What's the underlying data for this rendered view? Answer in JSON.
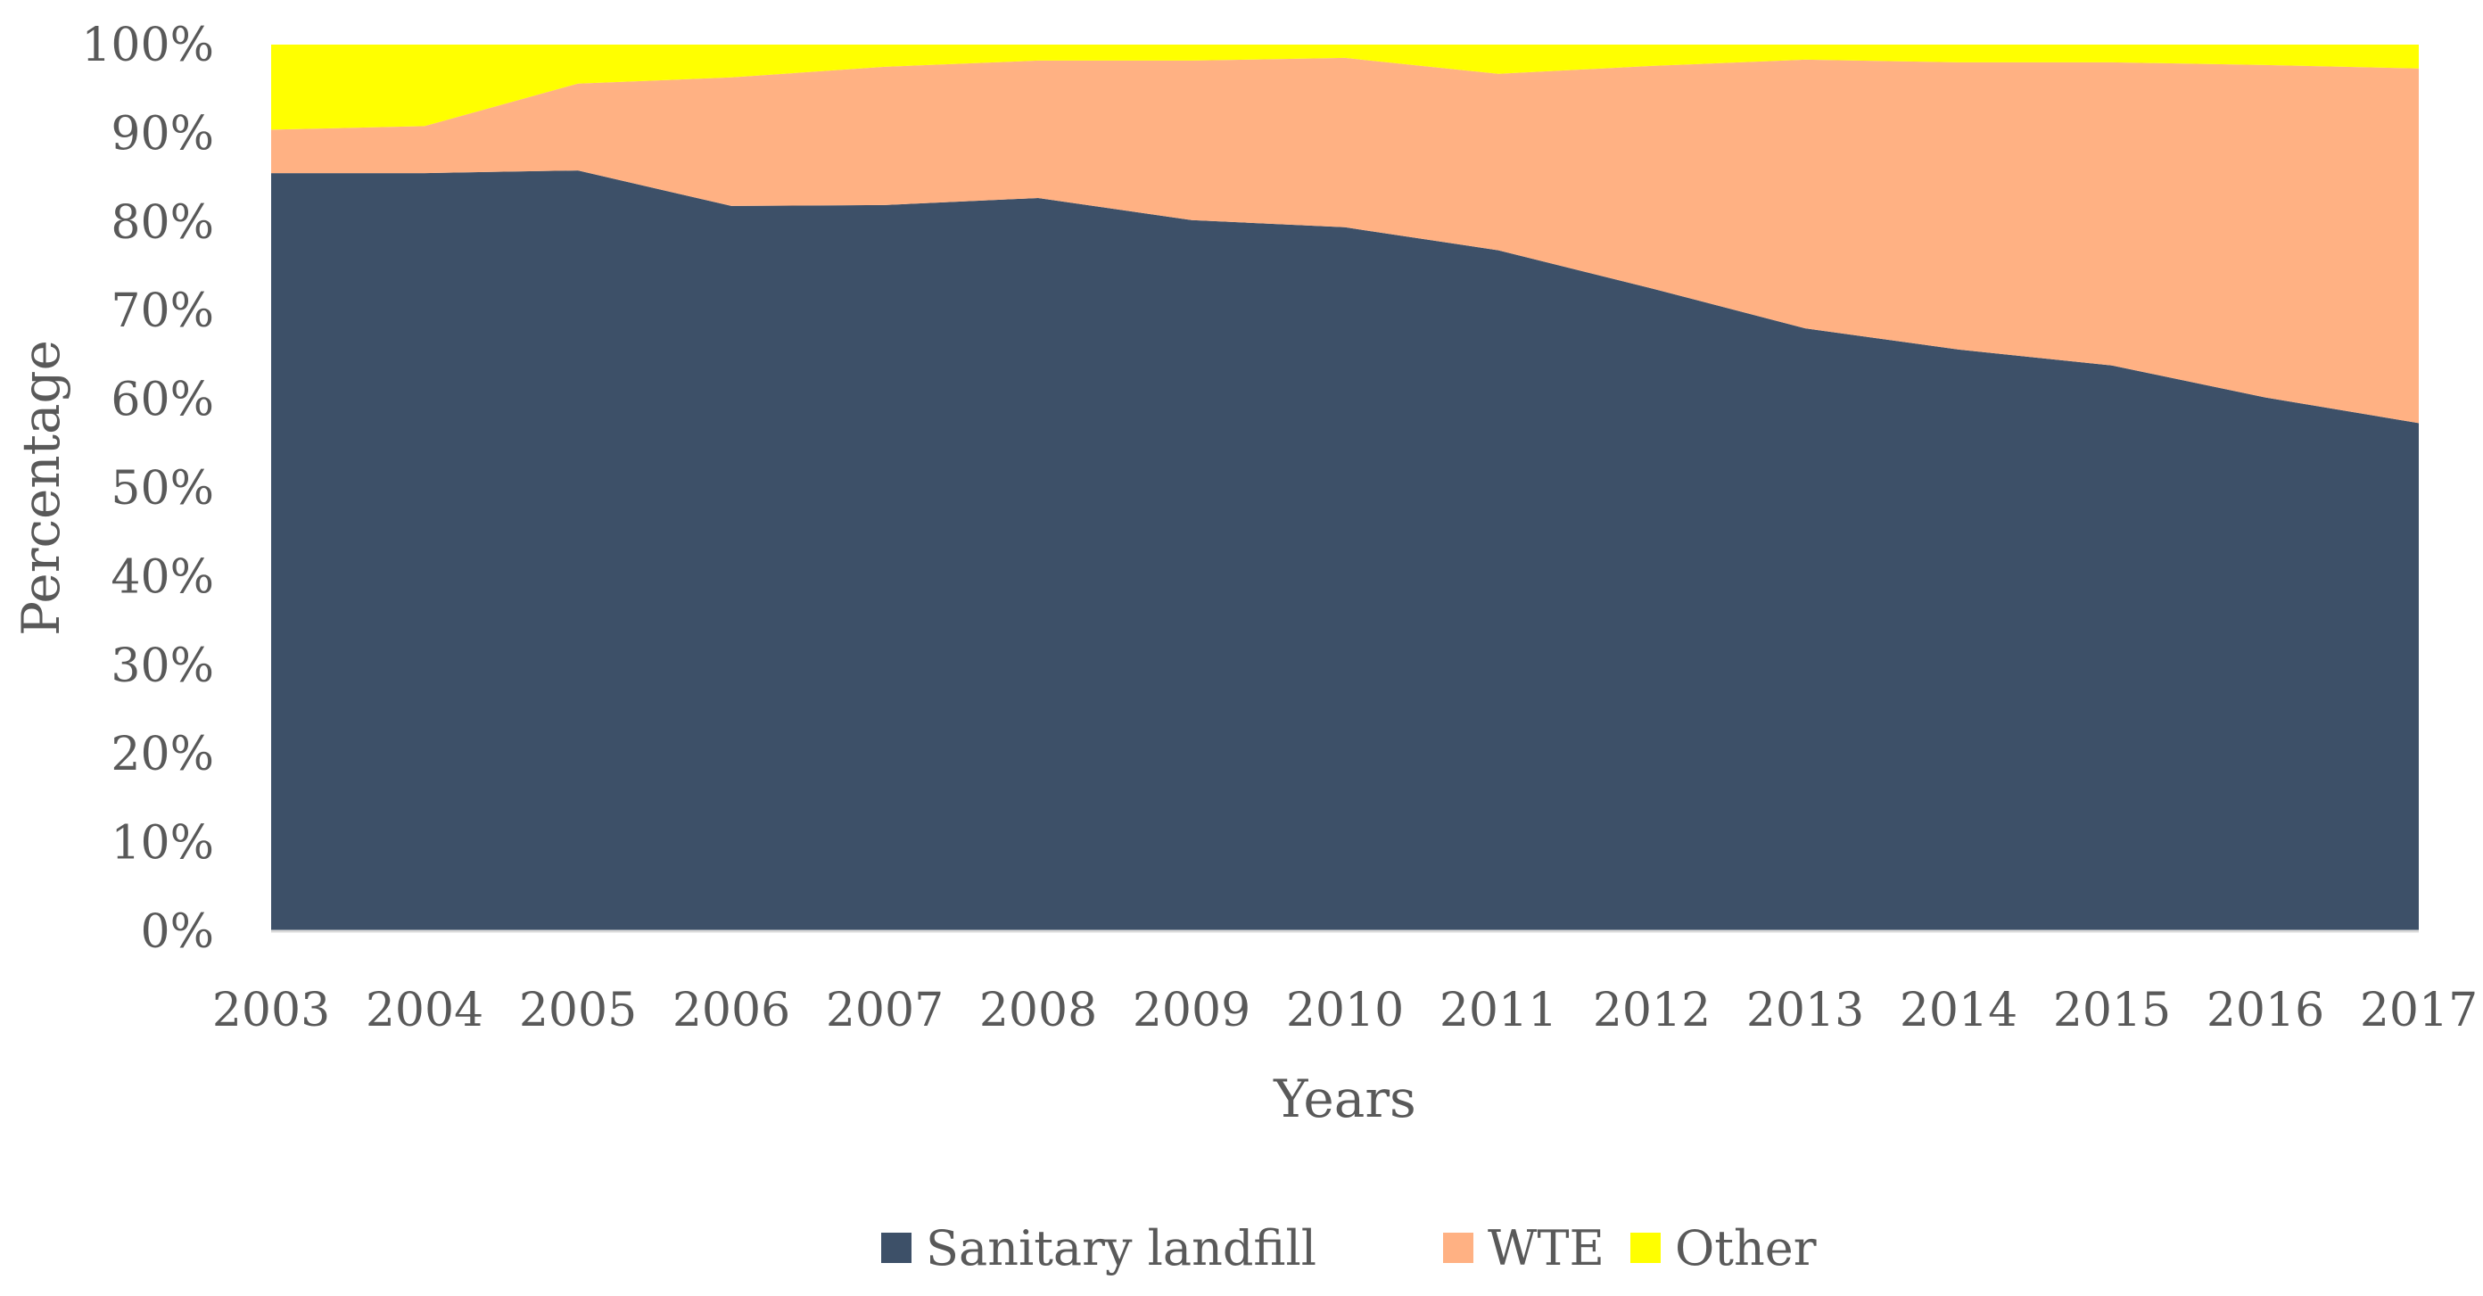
{
  "chart_data": {
    "type": "area",
    "stacked": "percent",
    "title": "",
    "xlabel": "Years",
    "ylabel": "Percentage",
    "ylim": [
      0,
      100
    ],
    "y_ticks": [
      "0%",
      "10%",
      "20%",
      "30%",
      "40%",
      "50%",
      "60%",
      "70%",
      "80%",
      "90%",
      "100%"
    ],
    "categories": [
      "2003",
      "2004",
      "2005",
      "2006",
      "2007",
      "2008",
      "2009",
      "2010",
      "2011",
      "2012",
      "2013",
      "2014",
      "2015",
      "2016",
      "2017"
    ],
    "series": [
      {
        "name": "Sanitary landfill",
        "color": "#3d5068",
        "values": [
          85.5,
          85.5,
          85.8,
          81.8,
          81.9,
          82.7,
          80.2,
          79.4,
          76.8,
          72.5,
          68.0,
          65.6,
          63.8,
          60.2,
          57.3
        ]
      },
      {
        "name": "WTE",
        "color": "#ffb183",
        "values": [
          4.9,
          5.3,
          9.8,
          14.5,
          15.6,
          15.5,
          18.0,
          19.1,
          19.9,
          25.1,
          30.3,
          32.4,
          34.2,
          37.5,
          40.0
        ]
      },
      {
        "name": "Other",
        "color": "#ffff00",
        "values": [
          9.6,
          9.2,
          4.4,
          3.7,
          2.5,
          1.8,
          1.8,
          1.5,
          3.3,
          2.4,
          1.7,
          2.0,
          2.0,
          2.3,
          2.7
        ]
      }
    ],
    "legend_position": "bottom-center",
    "grid": false
  }
}
